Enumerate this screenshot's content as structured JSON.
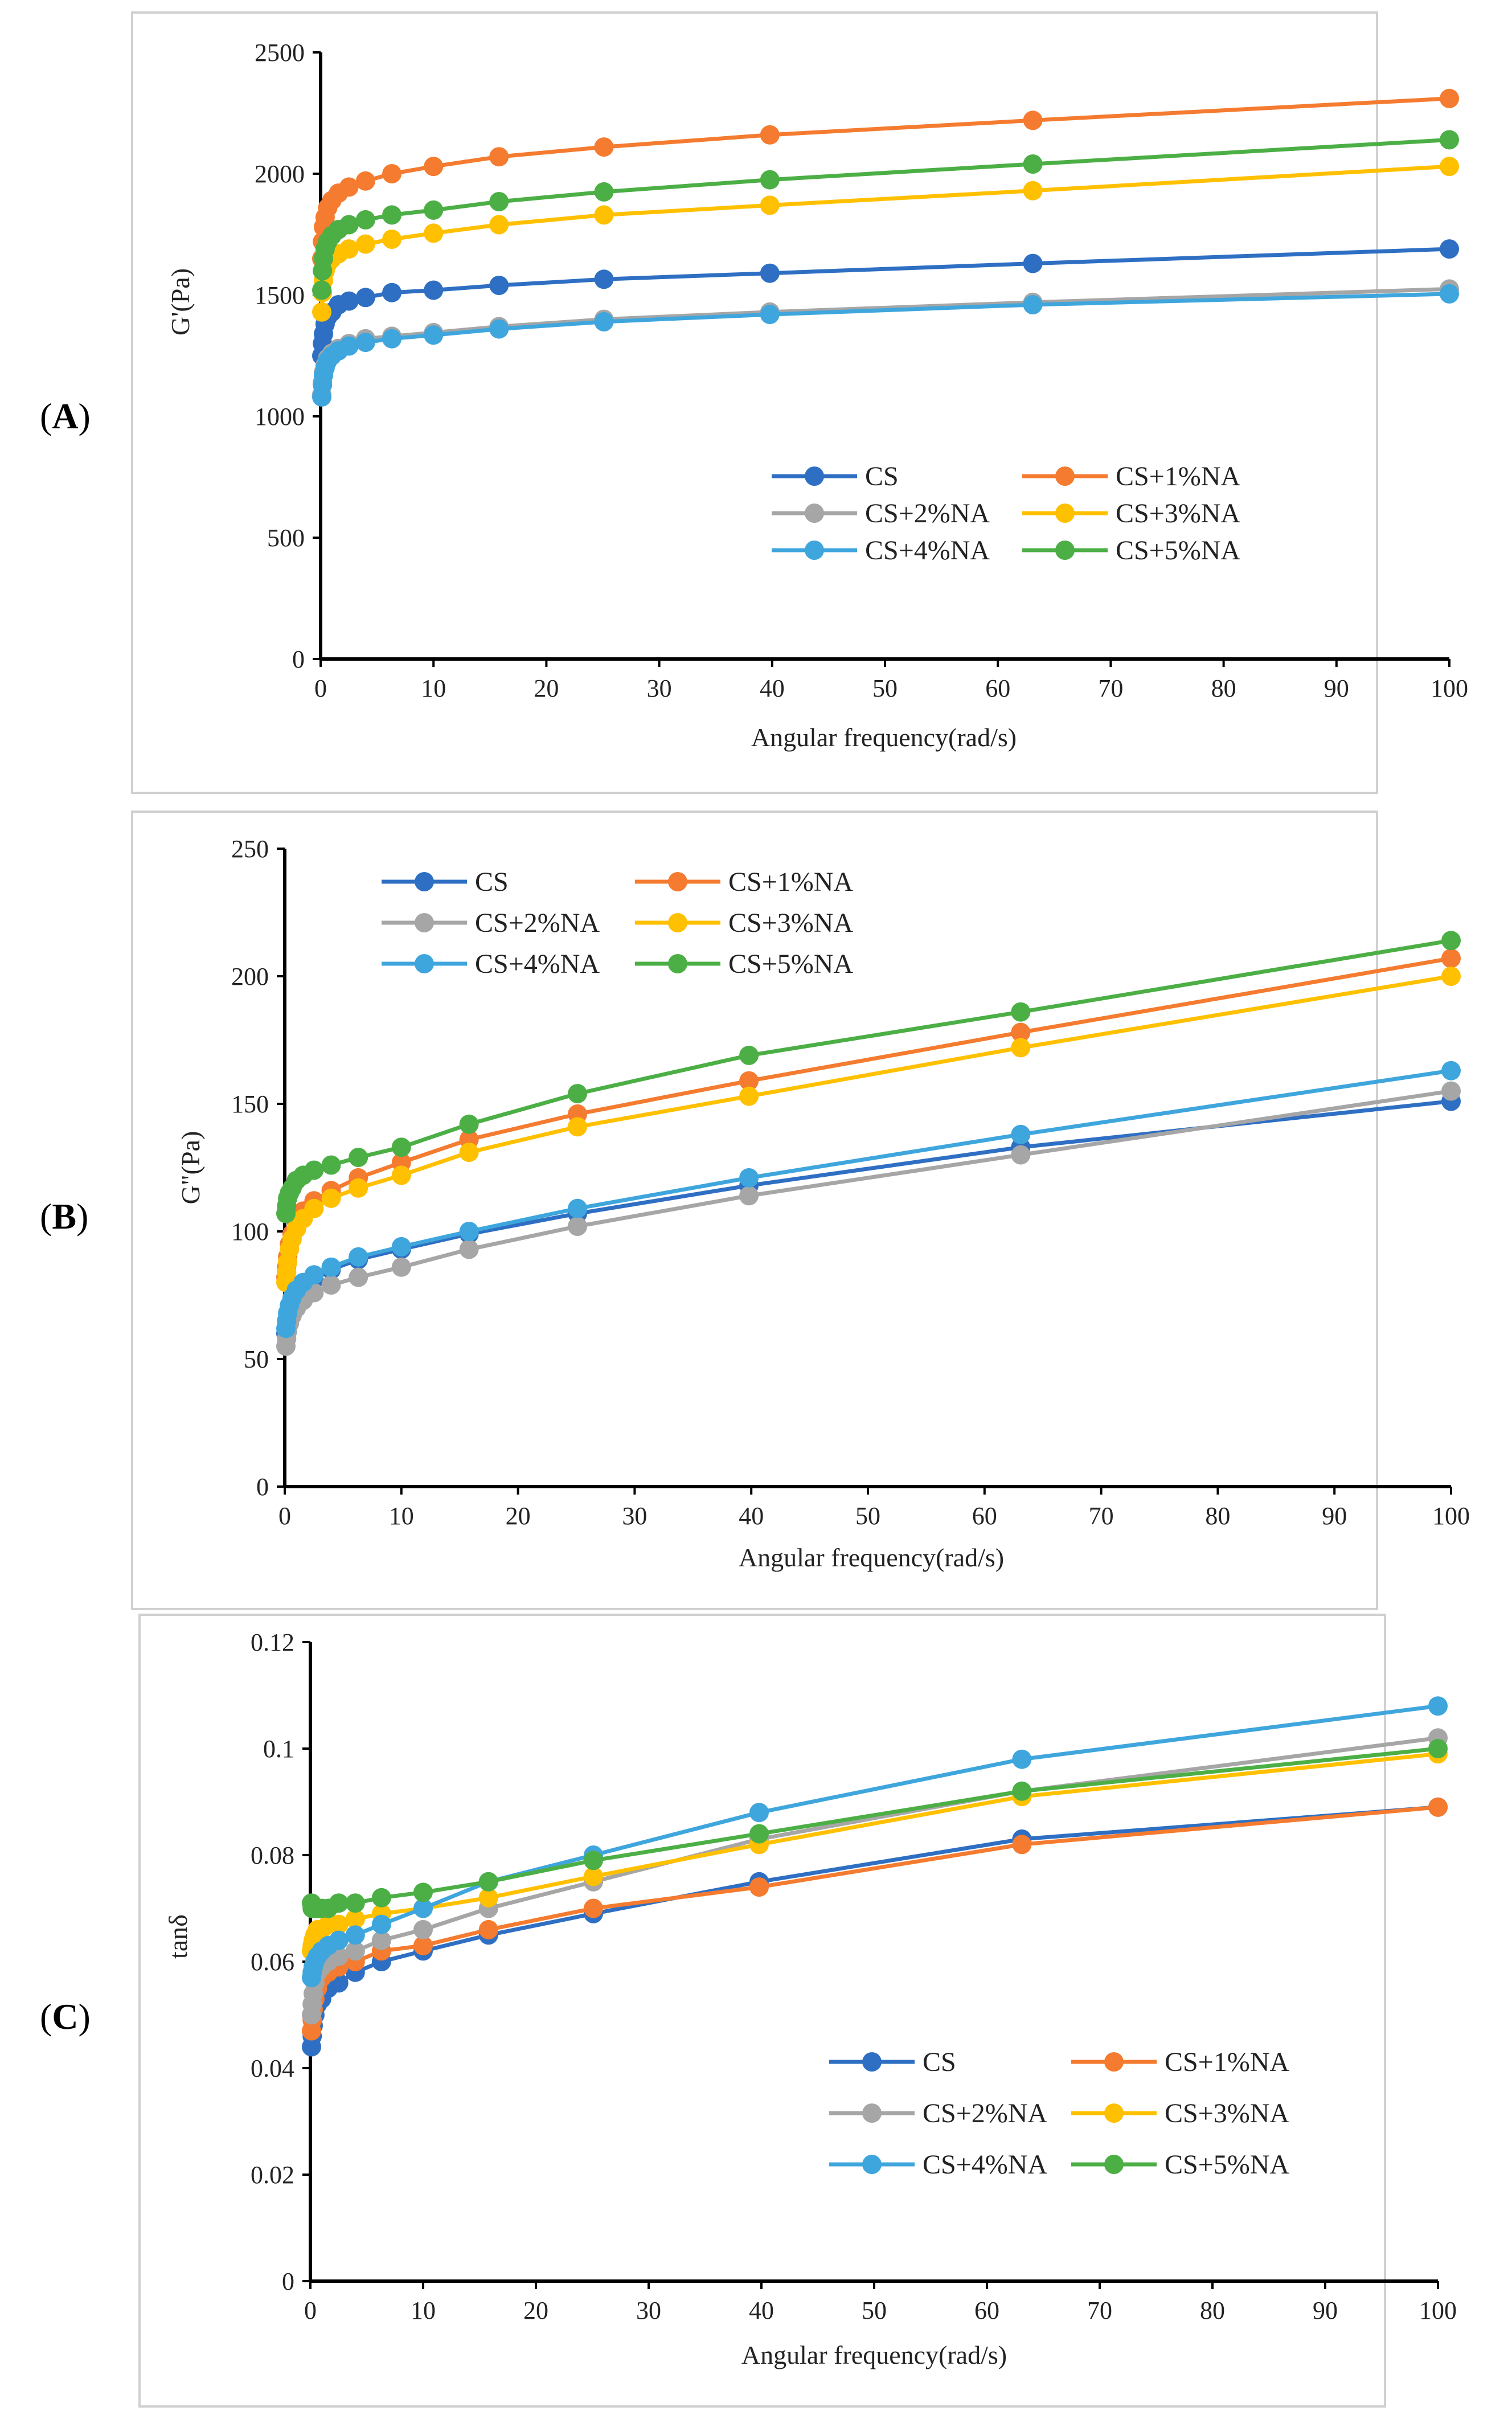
{
  "figure": {
    "panel_labels": [
      "A",
      "B",
      "C"
    ]
  },
  "chart_data": [
    {
      "type": "line",
      "panel": "A",
      "title": "",
      "xlabel": "Angular frequency(rad/s)",
      "ylabel": "G'(Pa)",
      "xlim": [
        0,
        100
      ],
      "ylim": [
        0,
        2500
      ],
      "xticks": [
        0,
        10,
        20,
        30,
        40,
        50,
        60,
        70,
        80,
        90,
        100
      ],
      "yticks": [
        0,
        500,
        1000,
        1500,
        2000,
        2500
      ],
      "grid": false,
      "legend_position": "bottom-right",
      "x": [
        0.1,
        0.16,
        0.25,
        0.4,
        0.63,
        1,
        1.58,
        2.51,
        3.98,
        6.31,
        10,
        15.8,
        25.1,
        39.8,
        63.1,
        100
      ],
      "series": [
        {
          "name": "CS",
          "color": "#2E6FC3",
          "values": [
            1250,
            1300,
            1340,
            1380,
            1410,
            1430,
            1460,
            1475,
            1490,
            1510,
            1520,
            1540,
            1565,
            1590,
            1630,
            1690
          ]
        },
        {
          "name": "CS+1%NA",
          "color": "#F47B2F",
          "values": [
            1650,
            1720,
            1780,
            1820,
            1860,
            1890,
            1920,
            1945,
            1970,
            2000,
            2030,
            2070,
            2110,
            2160,
            2220,
            2310
          ]
        },
        {
          "name": "CS+2%NA",
          "color": "#A6A6A6",
          "values": [
            1090,
            1140,
            1180,
            1210,
            1240,
            1260,
            1280,
            1300,
            1320,
            1330,
            1345,
            1370,
            1400,
            1430,
            1470,
            1525
          ]
        },
        {
          "name": "CS+3%NA",
          "color": "#FFC000",
          "values": [
            1430,
            1510,
            1560,
            1600,
            1630,
            1650,
            1670,
            1690,
            1710,
            1730,
            1755,
            1790,
            1830,
            1870,
            1930,
            2030
          ]
        },
        {
          "name": "CS+4%NA",
          "color": "#3FA6DD",
          "values": [
            1080,
            1130,
            1170,
            1200,
            1230,
            1250,
            1270,
            1290,
            1305,
            1320,
            1335,
            1360,
            1390,
            1420,
            1460,
            1505
          ]
        },
        {
          "name": "CS+5%NA",
          "color": "#4CAF45",
          "values": [
            1520,
            1600,
            1650,
            1690,
            1720,
            1745,
            1770,
            1790,
            1810,
            1830,
            1850,
            1885,
            1925,
            1975,
            2040,
            2140
          ]
        }
      ]
    },
    {
      "type": "line",
      "panel": "B",
      "title": "",
      "xlabel": "Angular frequency(rad/s)",
      "ylabel": "G\"(Pa)",
      "xlim": [
        0,
        100
      ],
      "ylim": [
        0,
        250
      ],
      "xticks": [
        0,
        10,
        20,
        30,
        40,
        50,
        60,
        70,
        80,
        90,
        100
      ],
      "yticks": [
        0,
        50,
        100,
        150,
        200,
        250
      ],
      "grid": false,
      "legend_position": "top-left",
      "x": [
        0.1,
        0.16,
        0.25,
        0.4,
        0.63,
        1,
        1.58,
        2.51,
        3.98,
        6.31,
        10,
        15.8,
        25.1,
        39.8,
        63.1,
        100
      ],
      "series": [
        {
          "name": "CS",
          "color": "#2E6FC3",
          "values": [
            60,
            63,
            66,
            69,
            72,
            75,
            78,
            81,
            85,
            89,
            93,
            99,
            107,
            118,
            133,
            151
          ]
        },
        {
          "name": "CS+1%NA",
          "color": "#F47B2F",
          "values": [
            82,
            86,
            90,
            95,
            99,
            104,
            108,
            112,
            116,
            121,
            127,
            136,
            146,
            159,
            178,
            207
          ]
        },
        {
          "name": "CS+2%NA",
          "color": "#A6A6A6",
          "values": [
            55,
            58,
            61,
            64,
            67,
            70,
            73,
            76,
            79,
            82,
            86,
            93,
            102,
            114,
            130,
            155
          ]
        },
        {
          "name": "CS+3%NA",
          "color": "#FFC000",
          "values": [
            80,
            84,
            88,
            93,
            97,
            101,
            105,
            109,
            113,
            117,
            122,
            131,
            141,
            153,
            172,
            200
          ]
        },
        {
          "name": "CS+4%NA",
          "color": "#3FA6DD",
          "values": [
            62,
            65,
            68,
            71,
            74,
            77,
            80,
            83,
            86,
            90,
            94,
            100,
            109,
            121,
            138,
            163
          ]
        },
        {
          "name": "CS+5%NA",
          "color": "#4CAF45",
          "values": [
            107,
            110,
            113,
            115,
            117,
            120,
            122,
            124,
            126,
            129,
            133,
            142,
            154,
            169,
            186,
            214
          ]
        }
      ]
    },
    {
      "type": "line",
      "panel": "C",
      "title": "",
      "xlabel": "Angular frequency(rad/s)",
      "ylabel": "tanδ",
      "xlim": [
        0,
        100
      ],
      "ylim": [
        0,
        0.12
      ],
      "xticks": [
        0,
        10,
        20,
        30,
        40,
        50,
        60,
        70,
        80,
        90,
        100
      ],
      "yticks": [
        0,
        0.02,
        0.04,
        0.06,
        0.08,
        0.1,
        0.12
      ],
      "ytick_labels": [
        "0",
        "0.02",
        "0.04",
        "0.06",
        "0.08",
        "0.1",
        "0.12"
      ],
      "grid": false,
      "legend_position": "bottom-right",
      "x": [
        0.1,
        0.16,
        0.25,
        0.4,
        0.63,
        1,
        1.58,
        2.51,
        3.98,
        6.31,
        10,
        15.8,
        25.1,
        39.8,
        63.1,
        100
      ],
      "series": [
        {
          "name": "CS",
          "color": "#2E6FC3",
          "values": [
            0.044,
            0.046,
            0.048,
            0.05,
            0.052,
            0.053,
            0.055,
            0.056,
            0.058,
            0.06,
            0.062,
            0.065,
            0.069,
            0.075,
            0.083,
            0.089
          ]
        },
        {
          "name": "CS+1%NA",
          "color": "#F47B2F",
          "values": [
            0.047,
            0.049,
            0.051,
            0.053,
            0.055,
            0.057,
            0.058,
            0.059,
            0.06,
            0.062,
            0.063,
            0.066,
            0.07,
            0.074,
            0.082,
            0.089
          ]
        },
        {
          "name": "CS+2%NA",
          "color": "#A6A6A6",
          "values": [
            0.05,
            0.052,
            0.054,
            0.056,
            0.058,
            0.059,
            0.06,
            0.061,
            0.062,
            0.064,
            0.066,
            0.07,
            0.075,
            0.083,
            0.092,
            0.102
          ]
        },
        {
          "name": "CS+3%NA",
          "color": "#FFC000",
          "values": [
            0.062,
            0.063,
            0.064,
            0.065,
            0.066,
            0.066,
            0.067,
            0.067,
            0.068,
            0.069,
            0.07,
            0.072,
            0.076,
            0.082,
            0.091,
            0.099
          ]
        },
        {
          "name": "CS+4%NA",
          "color": "#3FA6DD",
          "values": [
            0.057,
            0.058,
            0.059,
            0.06,
            0.061,
            0.062,
            0.063,
            0.064,
            0.065,
            0.067,
            0.07,
            0.075,
            0.08,
            0.088,
            0.098,
            0.108
          ]
        },
        {
          "name": "CS+5%NA",
          "color": "#4CAF45",
          "values": [
            0.071,
            0.07,
            0.07,
            0.07,
            0.07,
            0.07,
            0.07,
            0.071,
            0.071,
            0.072,
            0.073,
            0.075,
            0.079,
            0.084,
            0.092,
            0.1
          ]
        }
      ]
    }
  ]
}
